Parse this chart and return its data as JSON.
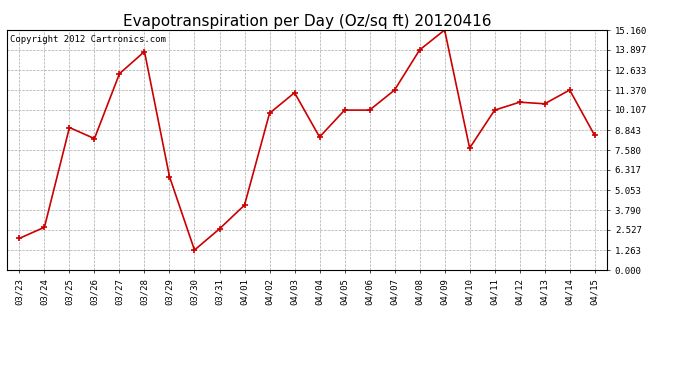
{
  "title": "Evapotranspiration per Day (Oz/sq ft) 20120416",
  "copyright": "Copyright 2012 Cartronics.com",
  "dates": [
    "03/23",
    "03/24",
    "03/25",
    "03/26",
    "03/27",
    "03/28",
    "03/29",
    "03/30",
    "03/31",
    "04/01",
    "04/02",
    "04/03",
    "04/04",
    "04/05",
    "04/06",
    "04/07",
    "04/08",
    "04/09",
    "04/10",
    "04/11",
    "04/12",
    "04/13",
    "04/14",
    "04/15"
  ],
  "values": [
    2.0,
    2.7,
    9.0,
    8.3,
    12.4,
    13.8,
    5.9,
    1.26,
    2.6,
    4.1,
    9.9,
    11.2,
    8.4,
    10.1,
    10.1,
    11.37,
    13.9,
    15.16,
    7.7,
    10.1,
    10.6,
    10.5,
    11.37,
    8.5
  ],
  "yticks": [
    0.0,
    1.263,
    2.527,
    3.79,
    5.053,
    6.317,
    7.58,
    8.843,
    10.107,
    11.37,
    12.633,
    13.897,
    15.16
  ],
  "line_color": "#cc0000",
  "marker": "+",
  "background_color": "#ffffff",
  "plot_bg_color": "#ffffff",
  "grid_color": "#aaaaaa",
  "title_fontsize": 11,
  "tick_fontsize": 6.5,
  "copyright_fontsize": 6.5
}
